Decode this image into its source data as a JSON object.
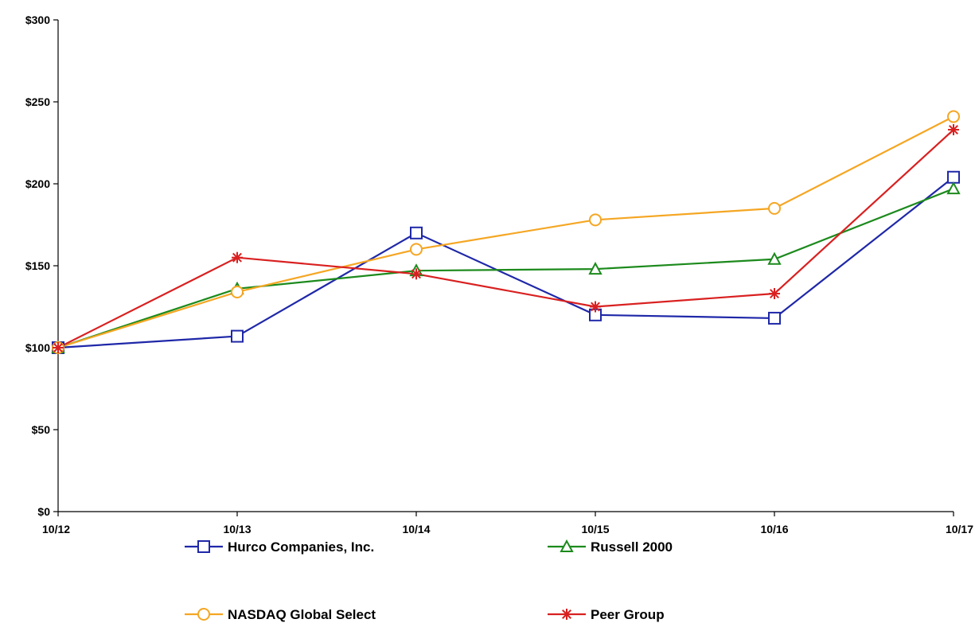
{
  "chart_data": {
    "type": "line",
    "title": "",
    "xlabel": "",
    "ylabel": "",
    "categories": [
      "10/12",
      "10/13",
      "10/14",
      "10/15",
      "10/16",
      "10/17"
    ],
    "ylim": [
      0,
      300
    ],
    "y_ticks": [
      {
        "value": 0,
        "label": "$0"
      },
      {
        "value": 50,
        "label": "$50"
      },
      {
        "value": 100,
        "label": "$100"
      },
      {
        "value": 150,
        "label": "$150"
      },
      {
        "value": 200,
        "label": "$200"
      },
      {
        "value": 250,
        "label": "$250"
      },
      {
        "value": 300,
        "label": "$300"
      }
    ],
    "grid": false,
    "legend_position": "bottom",
    "series": [
      {
        "name": "Hurco Companies, Inc.",
        "color": "#1f28a8",
        "marker": "square",
        "values": [
          100,
          107,
          170,
          120,
          118,
          204
        ]
      },
      {
        "name": "Russell 2000",
        "color": "#1c8a1c",
        "marker": "triangle",
        "values": [
          100,
          136,
          147,
          148,
          154,
          197
        ]
      },
      {
        "name": "NASDAQ Global Select",
        "color": "#f5a623",
        "marker": "circle",
        "values": [
          100,
          134,
          160,
          178,
          185,
          241
        ]
      },
      {
        "name": "Peer Group",
        "color": "#d92020",
        "marker": "asterisk",
        "values": [
          100,
          155,
          145,
          125,
          133,
          233
        ]
      }
    ]
  }
}
